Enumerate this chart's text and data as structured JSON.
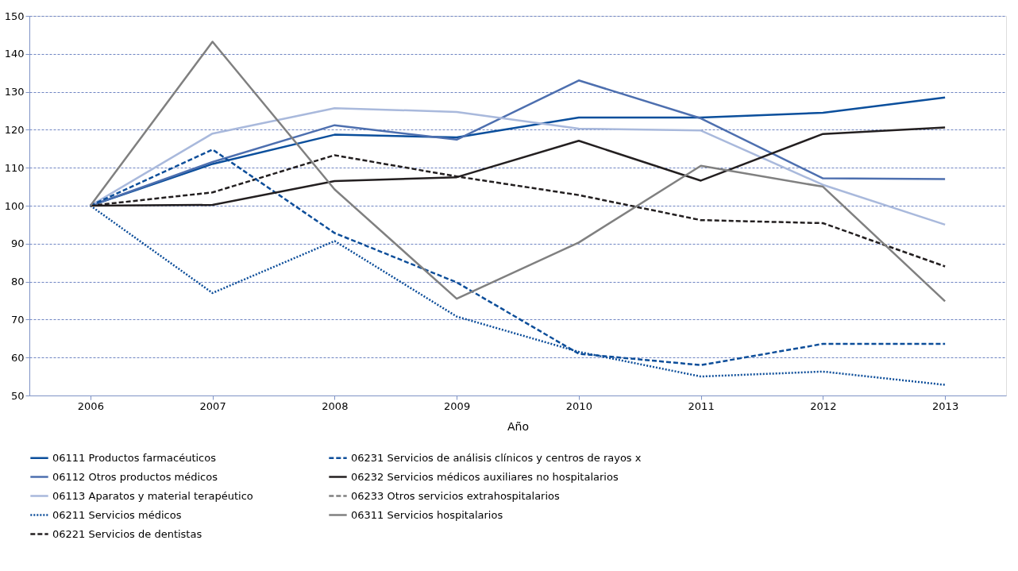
{
  "chart_data": {
    "type": "line",
    "xlabel": "Año",
    "categories": [
      "2006",
      "2007",
      "2008",
      "2009",
      "2010",
      "2011",
      "2012",
      "2013"
    ],
    "ylim": [
      50,
      150
    ],
    "yticks": [
      50,
      60,
      70,
      80,
      90,
      100,
      110,
      120,
      130,
      140,
      150
    ],
    "grid": "y",
    "legend": "bottom",
    "marker": "none",
    "series": [
      {
        "name": "06111 Productos farmacéuticos",
        "color": "#0b4f9c",
        "line_style": "solid",
        "values": [
          100,
          111,
          118.7,
          118,
          123.2,
          123.2,
          124.5,
          128.5
        ]
      },
      {
        "name": "06112 Otros productos médicos",
        "color": "#4d6faf",
        "line_style": "solid",
        "values": [
          100,
          111.5,
          121.2,
          117.4,
          133,
          123,
          107.2,
          107
        ]
      },
      {
        "name": "06113 Aparatos y material terapéutico",
        "color": "#a9b9dc",
        "line_style": "solid",
        "values": [
          100,
          119,
          125.7,
          124.7,
          120.3,
          119.8,
          105.5,
          95
        ]
      },
      {
        "name": "06211 Servicios médicos",
        "color": "#0d4e9a",
        "line_style": "dotted",
        "values": [
          100,
          77,
          90.7,
          70.8,
          61.5,
          55,
          56.3,
          52.8
        ]
      },
      {
        "name": "06221 Servicios de dentistas",
        "color": "#231f20",
        "line_style": "dashed",
        "values": [
          100,
          103.5,
          113.3,
          107.7,
          102.8,
          96.2,
          95.4,
          84
        ]
      },
      {
        "name": "06231 Servicios de análisis clínicos y centros de rayos x",
        "color": "#0d4e9a",
        "line_style": "dashed",
        "values": [
          100,
          114.8,
          92.8,
          79.8,
          61,
          58,
          63.6,
          63.6
        ]
      },
      {
        "name": "06232 Servicios médicos auxiliares no hospitalarios",
        "color": "#231f20",
        "line_style": "solid",
        "values": [
          100,
          100.2,
          106.5,
          107.5,
          117.1,
          106.6,
          118.9,
          120.6
        ]
      },
      {
        "name": "06233 Otros servicios extrahospitalarios",
        "color": "#808080",
        "line_style": "dashed",
        "values": [
          null,
          null,
          null,
          null,
          null,
          null,
          null,
          null
        ]
      },
      {
        "name": "06311 Servicios hospitalarios",
        "color": "#808080",
        "line_style": "solid",
        "values": [
          100,
          143.2,
          104.3,
          75.5,
          90.3,
          110.5,
          105,
          74.8
        ]
      }
    ]
  }
}
